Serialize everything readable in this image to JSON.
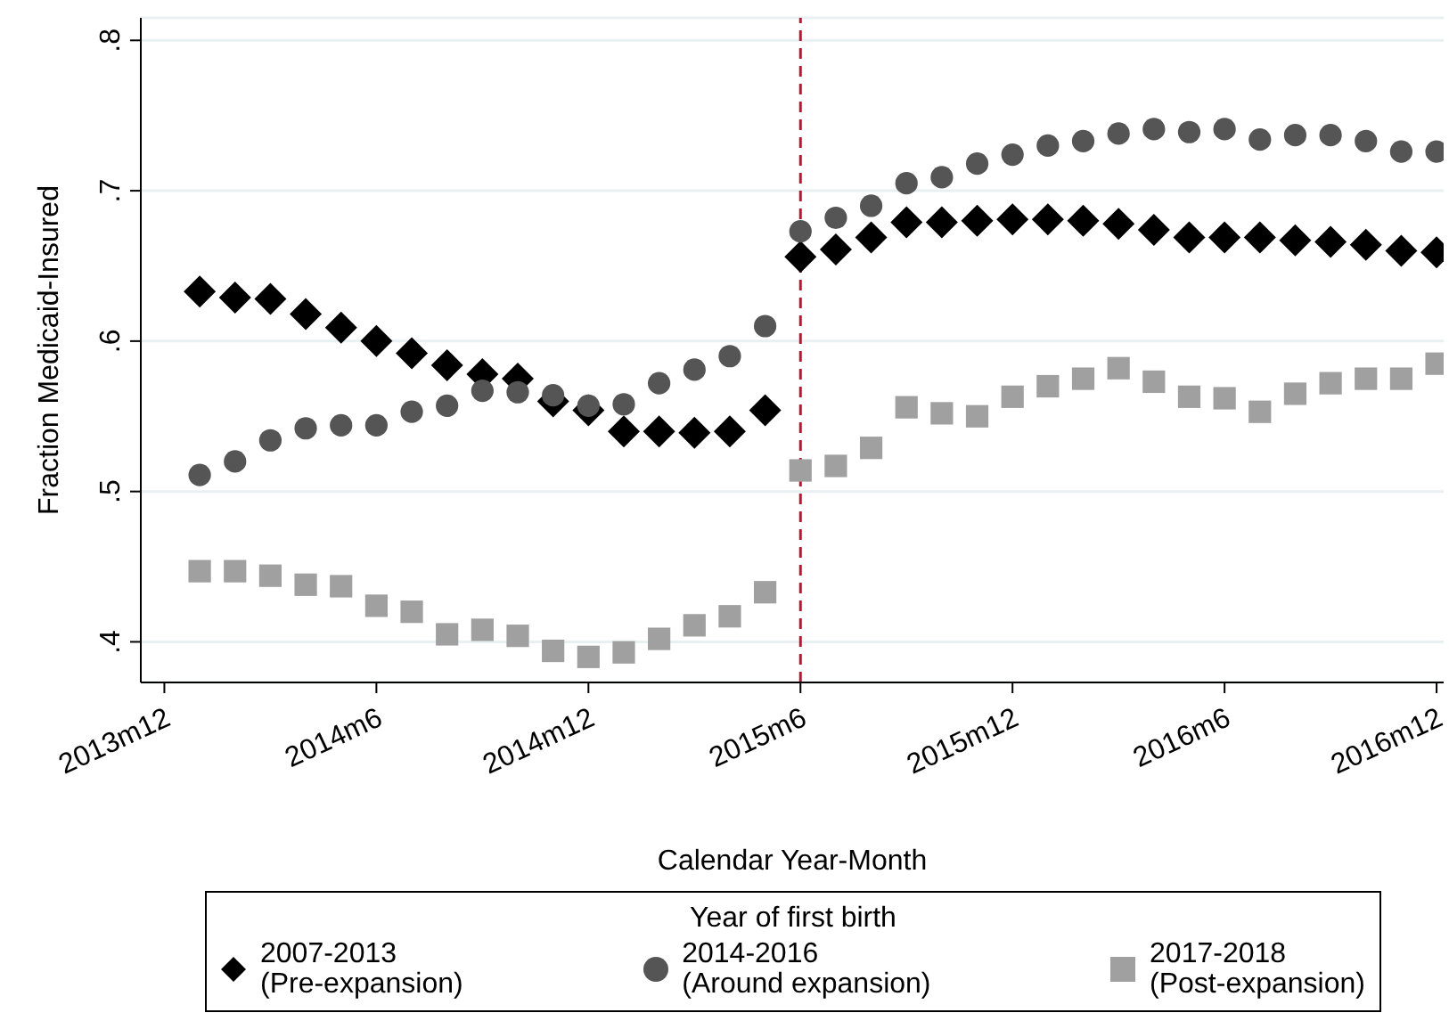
{
  "chart_data": {
    "type": "scatter",
    "xlabel": "Calendar Year-Month",
    "ylabel": "Fraction Medicaid-Insured",
    "legend_title": "Year of first birth",
    "x": [
      "2014-01",
      "2014-02",
      "2014-03",
      "2014-04",
      "2014-05",
      "2014-06",
      "2014-07",
      "2014-08",
      "2014-09",
      "2014-10",
      "2014-11",
      "2014-12",
      "2015-01",
      "2015-02",
      "2015-03",
      "2015-04",
      "2015-05",
      "2015-06",
      "2015-07",
      "2015-08",
      "2015-09",
      "2015-10",
      "2015-11",
      "2015-12",
      "2016-01",
      "2016-02",
      "2016-03",
      "2016-04",
      "2016-05",
      "2016-06",
      "2016-07",
      "2016-08",
      "2016-09",
      "2016-10",
      "2016-11",
      "2016-12"
    ],
    "series": [
      {
        "name": "2007-2013\n(Pre-expansion)",
        "color": "#000000",
        "marker": "diamond",
        "values": [
          0.633,
          0.629,
          0.628,
          0.618,
          0.609,
          0.6,
          0.592,
          0.584,
          0.578,
          0.575,
          0.56,
          0.554,
          0.54,
          0.54,
          0.539,
          0.54,
          0.554,
          0.656,
          0.661,
          0.669,
          0.679,
          0.679,
          0.68,
          0.681,
          0.681,
          0.68,
          0.678,
          0.674,
          0.669,
          0.669,
          0.669,
          0.667,
          0.666,
          0.664,
          0.66,
          0.659
        ]
      },
      {
        "name": "2014-2016\n(Around expansion)",
        "color": "#555555",
        "marker": "circle",
        "values": [
          0.511,
          0.52,
          0.534,
          0.542,
          0.544,
          0.544,
          0.553,
          0.557,
          0.567,
          0.566,
          0.564,
          0.557,
          0.558,
          0.572,
          0.581,
          0.59,
          0.61,
          0.673,
          0.682,
          0.69,
          0.705,
          0.709,
          0.718,
          0.724,
          0.73,
          0.733,
          0.738,
          0.741,
          0.739,
          0.741,
          0.734,
          0.737,
          0.737,
          0.733,
          0.726,
          0.726
        ]
      },
      {
        "name": "2017-2018\n(Post-expansion)",
        "color": "#a0a0a0",
        "marker": "square",
        "values": [
          0.447,
          0.447,
          0.444,
          0.438,
          0.437,
          0.424,
          0.42,
          0.405,
          0.408,
          0.404,
          0.394,
          0.39,
          0.393,
          0.402,
          0.411,
          0.417,
          0.433,
          0.514,
          0.517,
          0.529,
          0.556,
          0.552,
          0.55,
          0.563,
          0.57,
          0.575,
          0.582,
          0.573,
          0.563,
          0.562,
          0.553,
          0.565,
          0.572,
          0.575,
          0.575,
          0.585
        ]
      }
    ],
    "xlim": [
      "2013-11-11",
      "2016-12-07"
    ],
    "xticks": [
      {
        "value": "2013-12",
        "label": "2013m12"
      },
      {
        "value": "2014-06",
        "label": "2014m6"
      },
      {
        "value": "2014-12",
        "label": "2014m12"
      },
      {
        "value": "2015-06",
        "label": "2015m6"
      },
      {
        "value": "2015-12",
        "label": "2015m12"
      },
      {
        "value": "2016-06",
        "label": "2016m6"
      },
      {
        "value": "2016-12",
        "label": "2016m12"
      }
    ],
    "ylim": [
      0.373,
      0.815
    ],
    "yticks": [
      {
        "value": 0.4,
        "label": ".4"
      },
      {
        "value": 0.5,
        "label": ".5"
      },
      {
        "value": 0.6,
        "label": ".6"
      },
      {
        "value": 0.7,
        "label": ".7"
      },
      {
        "value": 0.8,
        "label": ".8"
      }
    ],
    "ref_lines": [
      {
        "axis": "x",
        "value": "2015-06",
        "color": "#c8102e",
        "line_style": "dashed"
      }
    ],
    "grid": "y",
    "legend": "bottom"
  }
}
